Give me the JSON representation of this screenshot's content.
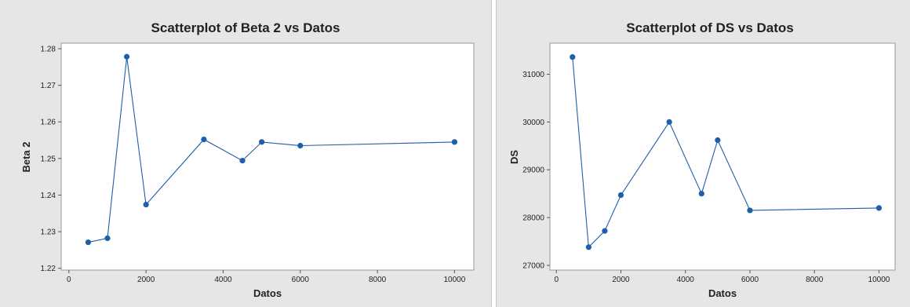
{
  "chart_data": [
    {
      "type": "line",
      "title": "Scatterplot of Beta 2 vs Datos",
      "xlabel": "Datos",
      "ylabel": "Beta 2",
      "xlim": [
        -200,
        10500
      ],
      "ylim": [
        1.2195,
        1.2815
      ],
      "xticks": [
        0,
        2000,
        4000,
        6000,
        8000,
        10000
      ],
      "yticks": [
        1.22,
        1.23,
        1.24,
        1.25,
        1.26,
        1.27,
        1.28
      ],
      "grid": false,
      "color": "#1f5ea8",
      "series": [
        {
          "x": [
            500,
            1000,
            1500,
            2000,
            3500,
            4500,
            5000,
            6000,
            10000
          ],
          "y": [
            1.2271,
            1.2282,
            1.2778,
            1.2374,
            1.2552,
            1.2494,
            1.2545,
            1.2535,
            1.2545
          ]
        }
      ]
    },
    {
      "type": "line",
      "title": "Scatterplot of DS vs Datos",
      "xlabel": "Datos",
      "ylabel": "DS",
      "xlim": [
        -200,
        10500
      ],
      "ylim": [
        26900,
        31650
      ],
      "xticks": [
        0,
        2000,
        4000,
        6000,
        8000,
        10000
      ],
      "yticks": [
        27000,
        28000,
        29000,
        30000,
        31000
      ],
      "grid": false,
      "color": "#1f5ea8",
      "series": [
        {
          "x": [
            500,
            1000,
            1500,
            2000,
            3500,
            4500,
            5000,
            6000,
            10000
          ],
          "y": [
            31360,
            27380,
            27720,
            28470,
            30000,
            28500,
            29620,
            28150,
            28200
          ]
        }
      ]
    }
  ]
}
